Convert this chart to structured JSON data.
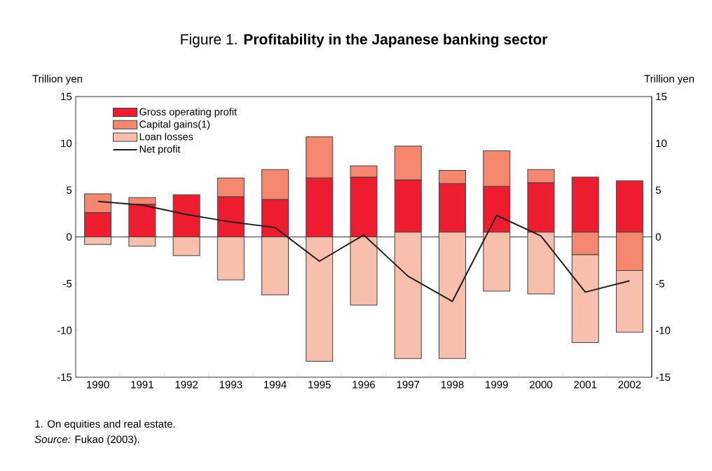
{
  "chart_data": {
    "type": "bar",
    "title": "Figure 1.   **Profitability in the Japanese banking sector**",
    "ylabel": "Trillion yen",
    "y2label": "Trillion yen",
    "categories": [
      "1990",
      "1991",
      "1992",
      "1993",
      "1994",
      "1995",
      "1996",
      "1997",
      "1998",
      "1999",
      "2000",
      "2001",
      "2002"
    ],
    "series": [
      {
        "name": "Gross operating profit",
        "color": "#ed1c2e",
        "base": [
          0,
          0,
          0,
          0,
          0,
          0,
          0,
          0.5,
          0.5,
          0.5,
          0.5,
          0.5,
          0.5
        ],
        "values": [
          2.6,
          3.5,
          4.5,
          4.3,
          4.0,
          6.3,
          6.4,
          5.6,
          5.2,
          4.9,
          5.3,
          5.9,
          5.5
        ]
      },
      {
        "name": "Capital gains(1)",
        "color": "#f4876e",
        "base": [
          2.6,
          3.5,
          null,
          4.3,
          4.0,
          6.3,
          6.4,
          6.1,
          5.7,
          5.4,
          5.8,
          0.5,
          0.5
        ],
        "values": [
          2.0,
          0.7,
          null,
          2.0,
          3.2,
          4.4,
          1.2,
          3.6,
          1.4,
          3.8,
          1.4,
          -2.4,
          -4.1
        ]
      },
      {
        "name": "Loan losses",
        "color": "#f9bfad",
        "base": [
          0,
          0,
          0,
          0,
          0,
          0,
          0,
          0.5,
          0.5,
          0.5,
          0.5,
          -1.9,
          -3.6
        ],
        "values": [
          -0.8,
          -1.0,
          -2.0,
          -4.6,
          -6.2,
          -13.3,
          -7.3,
          -13.5,
          -13.5,
          -6.3,
          -6.6,
          -9.4,
          -6.6
        ]
      },
      {
        "name": "Net profit",
        "type": "line",
        "color": "#231f20",
        "values": [
          3.8,
          3.4,
          2.4,
          1.6,
          1.0,
          -2.6,
          0.2,
          -4.2,
          -6.9,
          2.3,
          0.1,
          -5.9,
          -4.7
        ]
      }
    ],
    "ylim": [
      -15,
      15
    ],
    "yticks": [
      -15,
      -10,
      -5,
      0,
      5,
      10,
      15
    ],
    "y2lim": [
      -15,
      15
    ],
    "y2ticks": [
      -15,
      -10,
      -5,
      0,
      5,
      10,
      15
    ],
    "ref_lines": [
      {
        "axis": "y",
        "value": 0,
        "color": "#000000"
      }
    ],
    "legend": "top left",
    "grid": false,
    "marker": "none",
    "line_style": "solid",
    "annotations": [
      "1.  On equities and real estate.",
      "*Source:*  Fukao (2003)."
    ]
  }
}
